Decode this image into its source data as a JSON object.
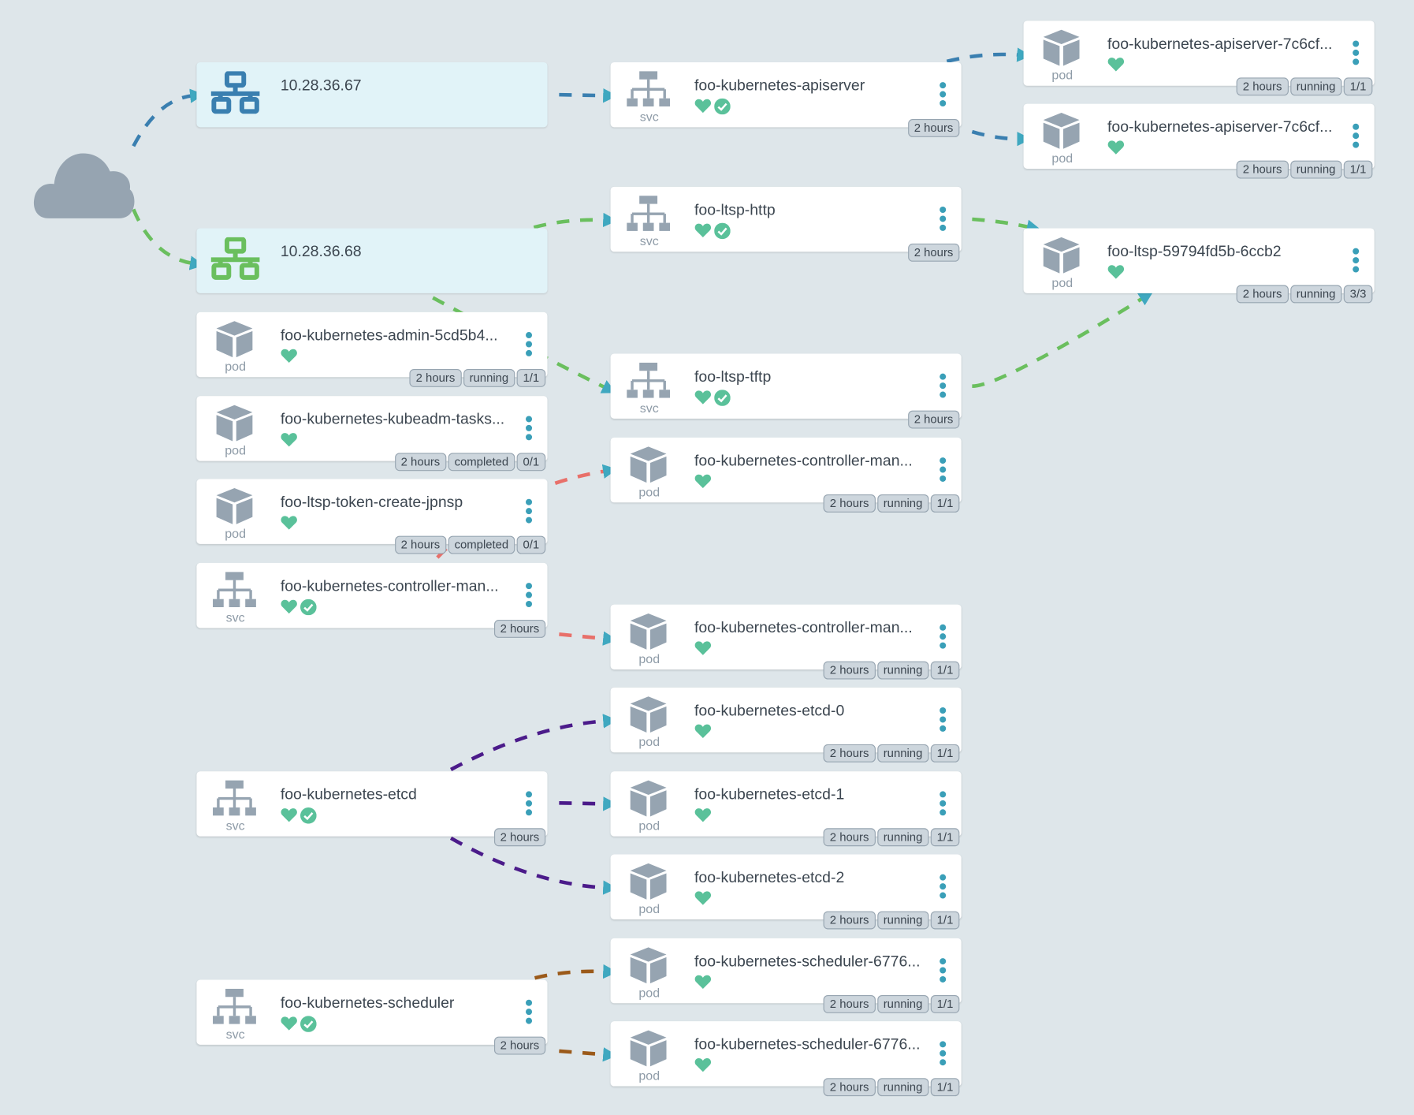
{
  "colors": {
    "background": "#dee6ea",
    "ingress_background": "#e1f3f8",
    "health": "#5ac19a",
    "kebab": "#3a9fb8",
    "icon_gray": "#96a4b1",
    "edge_ingress_1": "#3a7fb0",
    "edge_ingress_2": "#6abf5e",
    "edge_controller": "#e8706a",
    "edge_etcd": "#4b1b8a",
    "edge_scheduler": "#9b5a1a",
    "arrow": "#3fa8c0"
  },
  "cloud": {
    "icon": "cloud-icon"
  },
  "nodes": [
    {
      "id": "ing1",
      "kind": "ingress",
      "icon": "network-icon",
      "icon_color": "#3a7fb0",
      "title": "10.28.36.67"
    },
    {
      "id": "ing2",
      "kind": "ingress",
      "icon": "network-icon",
      "icon_color": "#6abf5e",
      "title": "10.28.36.68"
    },
    {
      "id": "admin",
      "kind": "pod",
      "kind_label": "pod",
      "title": "foo-kubernetes-admin-5cd5b4...",
      "healthy": true,
      "synced": false,
      "badges": [
        "2 hours",
        "running",
        "1/1"
      ]
    },
    {
      "id": "kubeadm",
      "kind": "pod",
      "kind_label": "pod",
      "title": "foo-kubernetes-kubeadm-tasks...",
      "healthy": true,
      "synced": false,
      "badges": [
        "2 hours",
        "completed",
        "0/1"
      ]
    },
    {
      "id": "token",
      "kind": "pod",
      "kind_label": "pod",
      "title": "foo-ltsp-token-create-jpnsp",
      "healthy": true,
      "synced": false,
      "badges": [
        "2 hours",
        "completed",
        "0/1"
      ]
    },
    {
      "id": "cmsvc",
      "kind": "svc",
      "kind_label": "svc",
      "title": "foo-kubernetes-controller-man...",
      "healthy": true,
      "synced": true,
      "badges": [
        "2 hours"
      ]
    },
    {
      "id": "etcdsvc",
      "kind": "svc",
      "kind_label": "svc",
      "title": "foo-kubernetes-etcd",
      "healthy": true,
      "synced": true,
      "badges": [
        "2 hours"
      ]
    },
    {
      "id": "schedsvc",
      "kind": "svc",
      "kind_label": "svc",
      "title": "foo-kubernetes-scheduler",
      "healthy": true,
      "synced": true,
      "badges": [
        "2 hours"
      ]
    },
    {
      "id": "apisvc",
      "kind": "svc",
      "kind_label": "svc",
      "title": "foo-kubernetes-apiserver",
      "healthy": true,
      "synced": true,
      "badges": [
        "2 hours"
      ]
    },
    {
      "id": "httpsvc",
      "kind": "svc",
      "kind_label": "svc",
      "title": "foo-ltsp-http",
      "healthy": true,
      "synced": true,
      "badges": [
        "2 hours"
      ]
    },
    {
      "id": "tftpsvc",
      "kind": "svc",
      "kind_label": "svc",
      "title": "foo-ltsp-tftp",
      "healthy": true,
      "synced": true,
      "badges": [
        "2 hours"
      ]
    },
    {
      "id": "cmpod1",
      "kind": "pod",
      "kind_label": "pod",
      "title": "foo-kubernetes-controller-man...",
      "healthy": true,
      "synced": false,
      "badges": [
        "2 hours",
        "running",
        "1/1"
      ]
    },
    {
      "id": "cmpod2",
      "kind": "pod",
      "kind_label": "pod",
      "title": "foo-kubernetes-controller-man...",
      "healthy": true,
      "synced": false,
      "badges": [
        "2 hours",
        "running",
        "1/1"
      ]
    },
    {
      "id": "etcd0",
      "kind": "pod",
      "kind_label": "pod",
      "title": "foo-kubernetes-etcd-0",
      "healthy": true,
      "synced": false,
      "badges": [
        "2 hours",
        "running",
        "1/1"
      ]
    },
    {
      "id": "etcd1",
      "kind": "pod",
      "kind_label": "pod",
      "title": "foo-kubernetes-etcd-1",
      "healthy": true,
      "synced": false,
      "badges": [
        "2 hours",
        "running",
        "1/1"
      ]
    },
    {
      "id": "etcd2",
      "kind": "pod",
      "kind_label": "pod",
      "title": "foo-kubernetes-etcd-2",
      "healthy": true,
      "synced": false,
      "badges": [
        "2 hours",
        "running",
        "1/1"
      ]
    },
    {
      "id": "sched1",
      "kind": "pod",
      "kind_label": "pod",
      "title": "foo-kubernetes-scheduler-6776...",
      "healthy": true,
      "synced": false,
      "badges": [
        "2 hours",
        "running",
        "1/1"
      ]
    },
    {
      "id": "sched2",
      "kind": "pod",
      "kind_label": "pod",
      "title": "foo-kubernetes-scheduler-6776...",
      "healthy": true,
      "synced": false,
      "badges": [
        "2 hours",
        "running",
        "1/1"
      ]
    },
    {
      "id": "apipod1",
      "kind": "pod",
      "kind_label": "pod",
      "title": "foo-kubernetes-apiserver-7c6cf...",
      "healthy": true,
      "synced": false,
      "badges": [
        "2 hours",
        "running",
        "1/1"
      ]
    },
    {
      "id": "apipod2",
      "kind": "pod",
      "kind_label": "pod",
      "title": "foo-kubernetes-apiserver-7c6cf...",
      "healthy": true,
      "synced": false,
      "badges": [
        "2 hours",
        "running",
        "1/1"
      ]
    },
    {
      "id": "ltsppod",
      "kind": "pod",
      "kind_label": "pod",
      "title": "foo-ltsp-59794fd5b-6ccb2",
      "healthy": true,
      "synced": false,
      "badges": [
        "2 hours",
        "running",
        "3/3"
      ]
    }
  ],
  "edges": [
    {
      "from": "cloud",
      "to": "ing1",
      "color": "#3a7fb0"
    },
    {
      "from": "cloud",
      "to": "ing2",
      "color": "#6abf5e"
    },
    {
      "from": "ing1",
      "to": "apisvc",
      "color": "#3a7fb0"
    },
    {
      "from": "apisvc",
      "to": "apipod1",
      "color": "#3a7fb0"
    },
    {
      "from": "apisvc",
      "to": "apipod2",
      "color": "#3a7fb0"
    },
    {
      "from": "ing2",
      "to": "httpsvc",
      "color": "#6abf5e"
    },
    {
      "from": "ing2",
      "to": "tftpsvc",
      "color": "#6abf5e"
    },
    {
      "from": "httpsvc",
      "to": "ltsppod",
      "color": "#6abf5e"
    },
    {
      "from": "tftpsvc",
      "to": "ltsppod",
      "color": "#6abf5e"
    },
    {
      "from": "cmsvc",
      "to": "cmpod1",
      "color": "#e8706a"
    },
    {
      "from": "cmsvc",
      "to": "cmpod2",
      "color": "#e8706a"
    },
    {
      "from": "etcdsvc",
      "to": "etcd0",
      "color": "#4b1b8a"
    },
    {
      "from": "etcdsvc",
      "to": "etcd1",
      "color": "#4b1b8a"
    },
    {
      "from": "etcdsvc",
      "to": "etcd2",
      "color": "#4b1b8a"
    },
    {
      "from": "schedsvc",
      "to": "sched1",
      "color": "#9b5a1a"
    },
    {
      "from": "schedsvc",
      "to": "sched2",
      "color": "#9b5a1a"
    }
  ]
}
